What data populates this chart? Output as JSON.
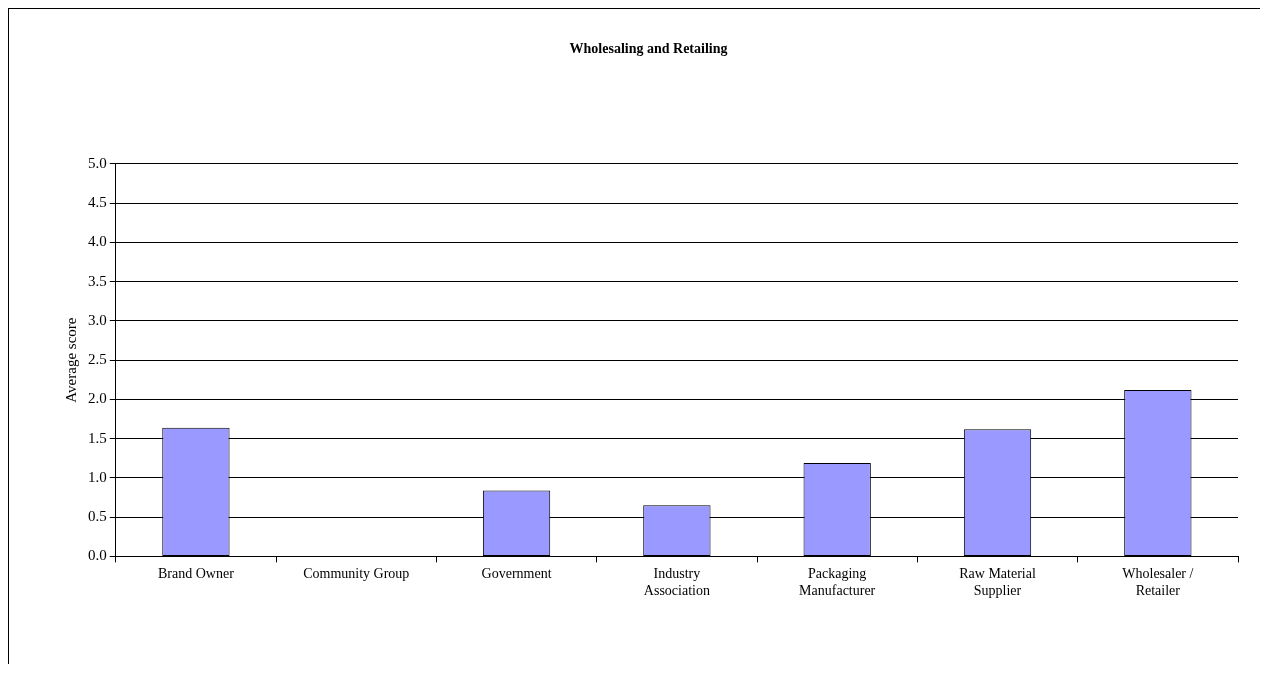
{
  "chart_data": {
    "type": "bar",
    "title": "Wholesaling and Retailing",
    "ylabel": "Average score",
    "categories": [
      "Brand Owner",
      "Community Group",
      "Government",
      "Industry Association",
      "Packaging Manufacturer",
      "Raw Material Supplier",
      "Wholesaler / Retailer"
    ],
    "values": [
      1.64,
      0,
      0.84,
      0.65,
      1.19,
      1.62,
      2.12
    ],
    "color": "#9999ff",
    "ylim": [
      0,
      5
    ],
    "yticks": [
      {
        "value": 0,
        "label": "0.0"
      },
      {
        "value": 0.5,
        "label": "0.5"
      },
      {
        "value": 1,
        "label": "1.0"
      },
      {
        "value": 1.5,
        "label": "1.5"
      },
      {
        "value": 2,
        "label": "2.0"
      },
      {
        "value": 2.5,
        "label": "2.5"
      },
      {
        "value": 3,
        "label": "3.0"
      },
      {
        "value": 3.5,
        "label": "3.5"
      },
      {
        "value": 4,
        "label": "4.0"
      },
      {
        "value": 4.5,
        "label": "4.5"
      },
      {
        "value": 5,
        "label": "5.0"
      }
    ],
    "grid": "y",
    "legend": false
  }
}
